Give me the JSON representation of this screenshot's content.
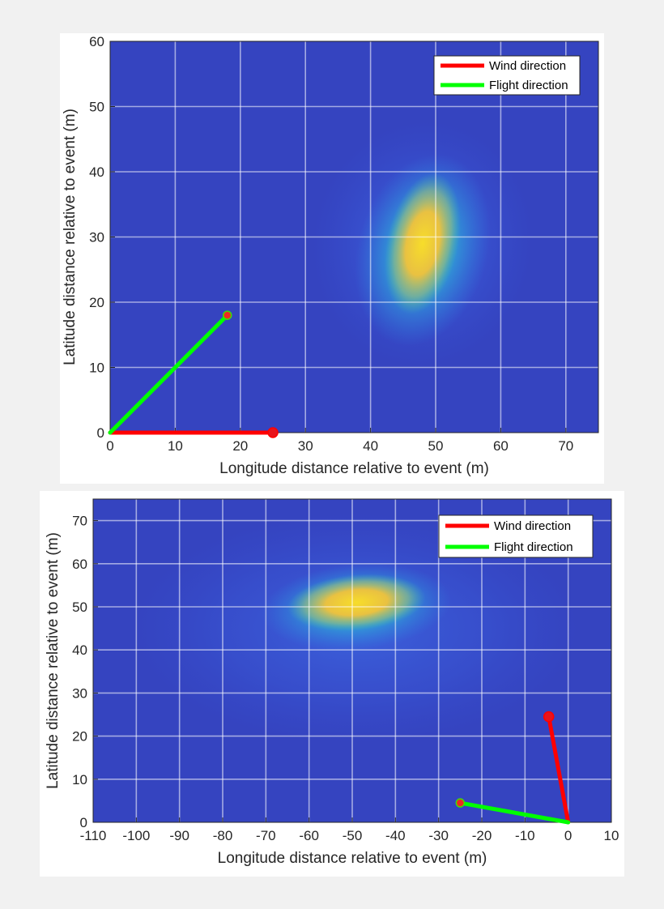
{
  "chart_data": [
    {
      "type": "heatmap",
      "title": "",
      "xlabel": "Longitude distance relative to event (m)",
      "ylabel": "Latitude distance relative to event (m)",
      "xlim": [
        0,
        75
      ],
      "ylim": [
        0,
        60
      ],
      "xticks": [
        0,
        10,
        20,
        30,
        40,
        50,
        60,
        70
      ],
      "yticks": [
        0,
        10,
        20,
        30,
        40,
        50,
        60
      ],
      "xtick_labels": [
        "0",
        "10",
        "20",
        "30",
        "40",
        "50",
        "60",
        "70"
      ],
      "ytick_labels": [
        "0",
        "10",
        "20",
        "30",
        "40",
        "50",
        "60"
      ],
      "grid": true,
      "legend_position": "top-right",
      "colormap": "parula",
      "heatmap_peak": {
        "x": 48,
        "y": 29
      },
      "series": [
        {
          "name": "Wind direction",
          "color": "#ff0000",
          "x": [
            0,
            25
          ],
          "y": [
            0,
            0
          ]
        },
        {
          "name": "Flight direction",
          "color": "#00ff00",
          "x": [
            0,
            18
          ],
          "y": [
            0,
            18
          ]
        }
      ]
    },
    {
      "type": "heatmap",
      "title": "",
      "xlabel": "Longitude distance relative to event (m)",
      "ylabel": "Latitude distance relative to event (m)",
      "xlim": [
        -110,
        10
      ],
      "ylim": [
        0,
        75
      ],
      "xticks": [
        -110,
        -100,
        -90,
        -80,
        -70,
        -60,
        -50,
        -40,
        -30,
        -20,
        -10,
        0,
        10
      ],
      "yticks": [
        0,
        10,
        20,
        30,
        40,
        50,
        60,
        70
      ],
      "xtick_labels": [
        "-110",
        "-100",
        "-90",
        "-80",
        "-70",
        "-60",
        "-50",
        "-40",
        "-30",
        "-20",
        "-10",
        "0",
        "10"
      ],
      "ytick_labels": [
        "0",
        "10",
        "20",
        "30",
        "40",
        "50",
        "60",
        "70"
      ],
      "grid": true,
      "legend_position": "top-right",
      "colormap": "parula",
      "heatmap_peak": {
        "x": -49,
        "y": 50
      },
      "series": [
        {
          "name": "Wind direction",
          "color": "#ff0000",
          "x": [
            0,
            -4.5
          ],
          "y": [
            0,
            24.5
          ]
        },
        {
          "name": "Flight direction",
          "color": "#00ff00",
          "x": [
            0,
            -25
          ],
          "y": [
            0,
            4.5
          ]
        }
      ]
    }
  ]
}
